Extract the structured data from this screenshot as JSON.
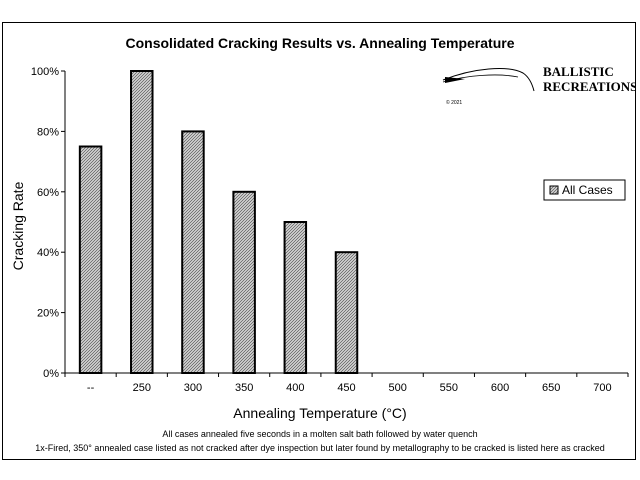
{
  "chart_data": {
    "type": "bar",
    "title": "Consolidated Cracking Results vs. Annealing Temperature",
    "xlabel": "Annealing Temperature (°C)",
    "ylabel": "Cracking Rate",
    "categories": [
      "--",
      "250",
      "300",
      "350",
      "400",
      "450",
      "500",
      "550",
      "600",
      "650",
      "700"
    ],
    "series": [
      {
        "name": "All Cases",
        "values": [
          0.75,
          1.0,
          0.8,
          0.6,
          0.5,
          0.4,
          null,
          null,
          null,
          null,
          null
        ]
      }
    ],
    "ylim": [
      0,
      1
    ],
    "yticks": [
      "0%",
      "20%",
      "40%",
      "60%",
      "80%",
      "100%"
    ],
    "grid": false,
    "legend_position": "right",
    "notes": [
      "All cases annealed five seconds in a molten salt bath followed by water quench",
      "1x-Fired, 350° annealed case listed as not cracked after dye inspection but later found by metallography to be cracked is listed here as cracked"
    ]
  },
  "logo": {
    "line1": "BALLISTIC",
    "line2": "RECREATIONS",
    "copyright": "© 2021"
  },
  "colors": {
    "bar_fill": "#d8d8d8",
    "bar_hatch": "#555555",
    "bar_stroke": "#000000"
  }
}
